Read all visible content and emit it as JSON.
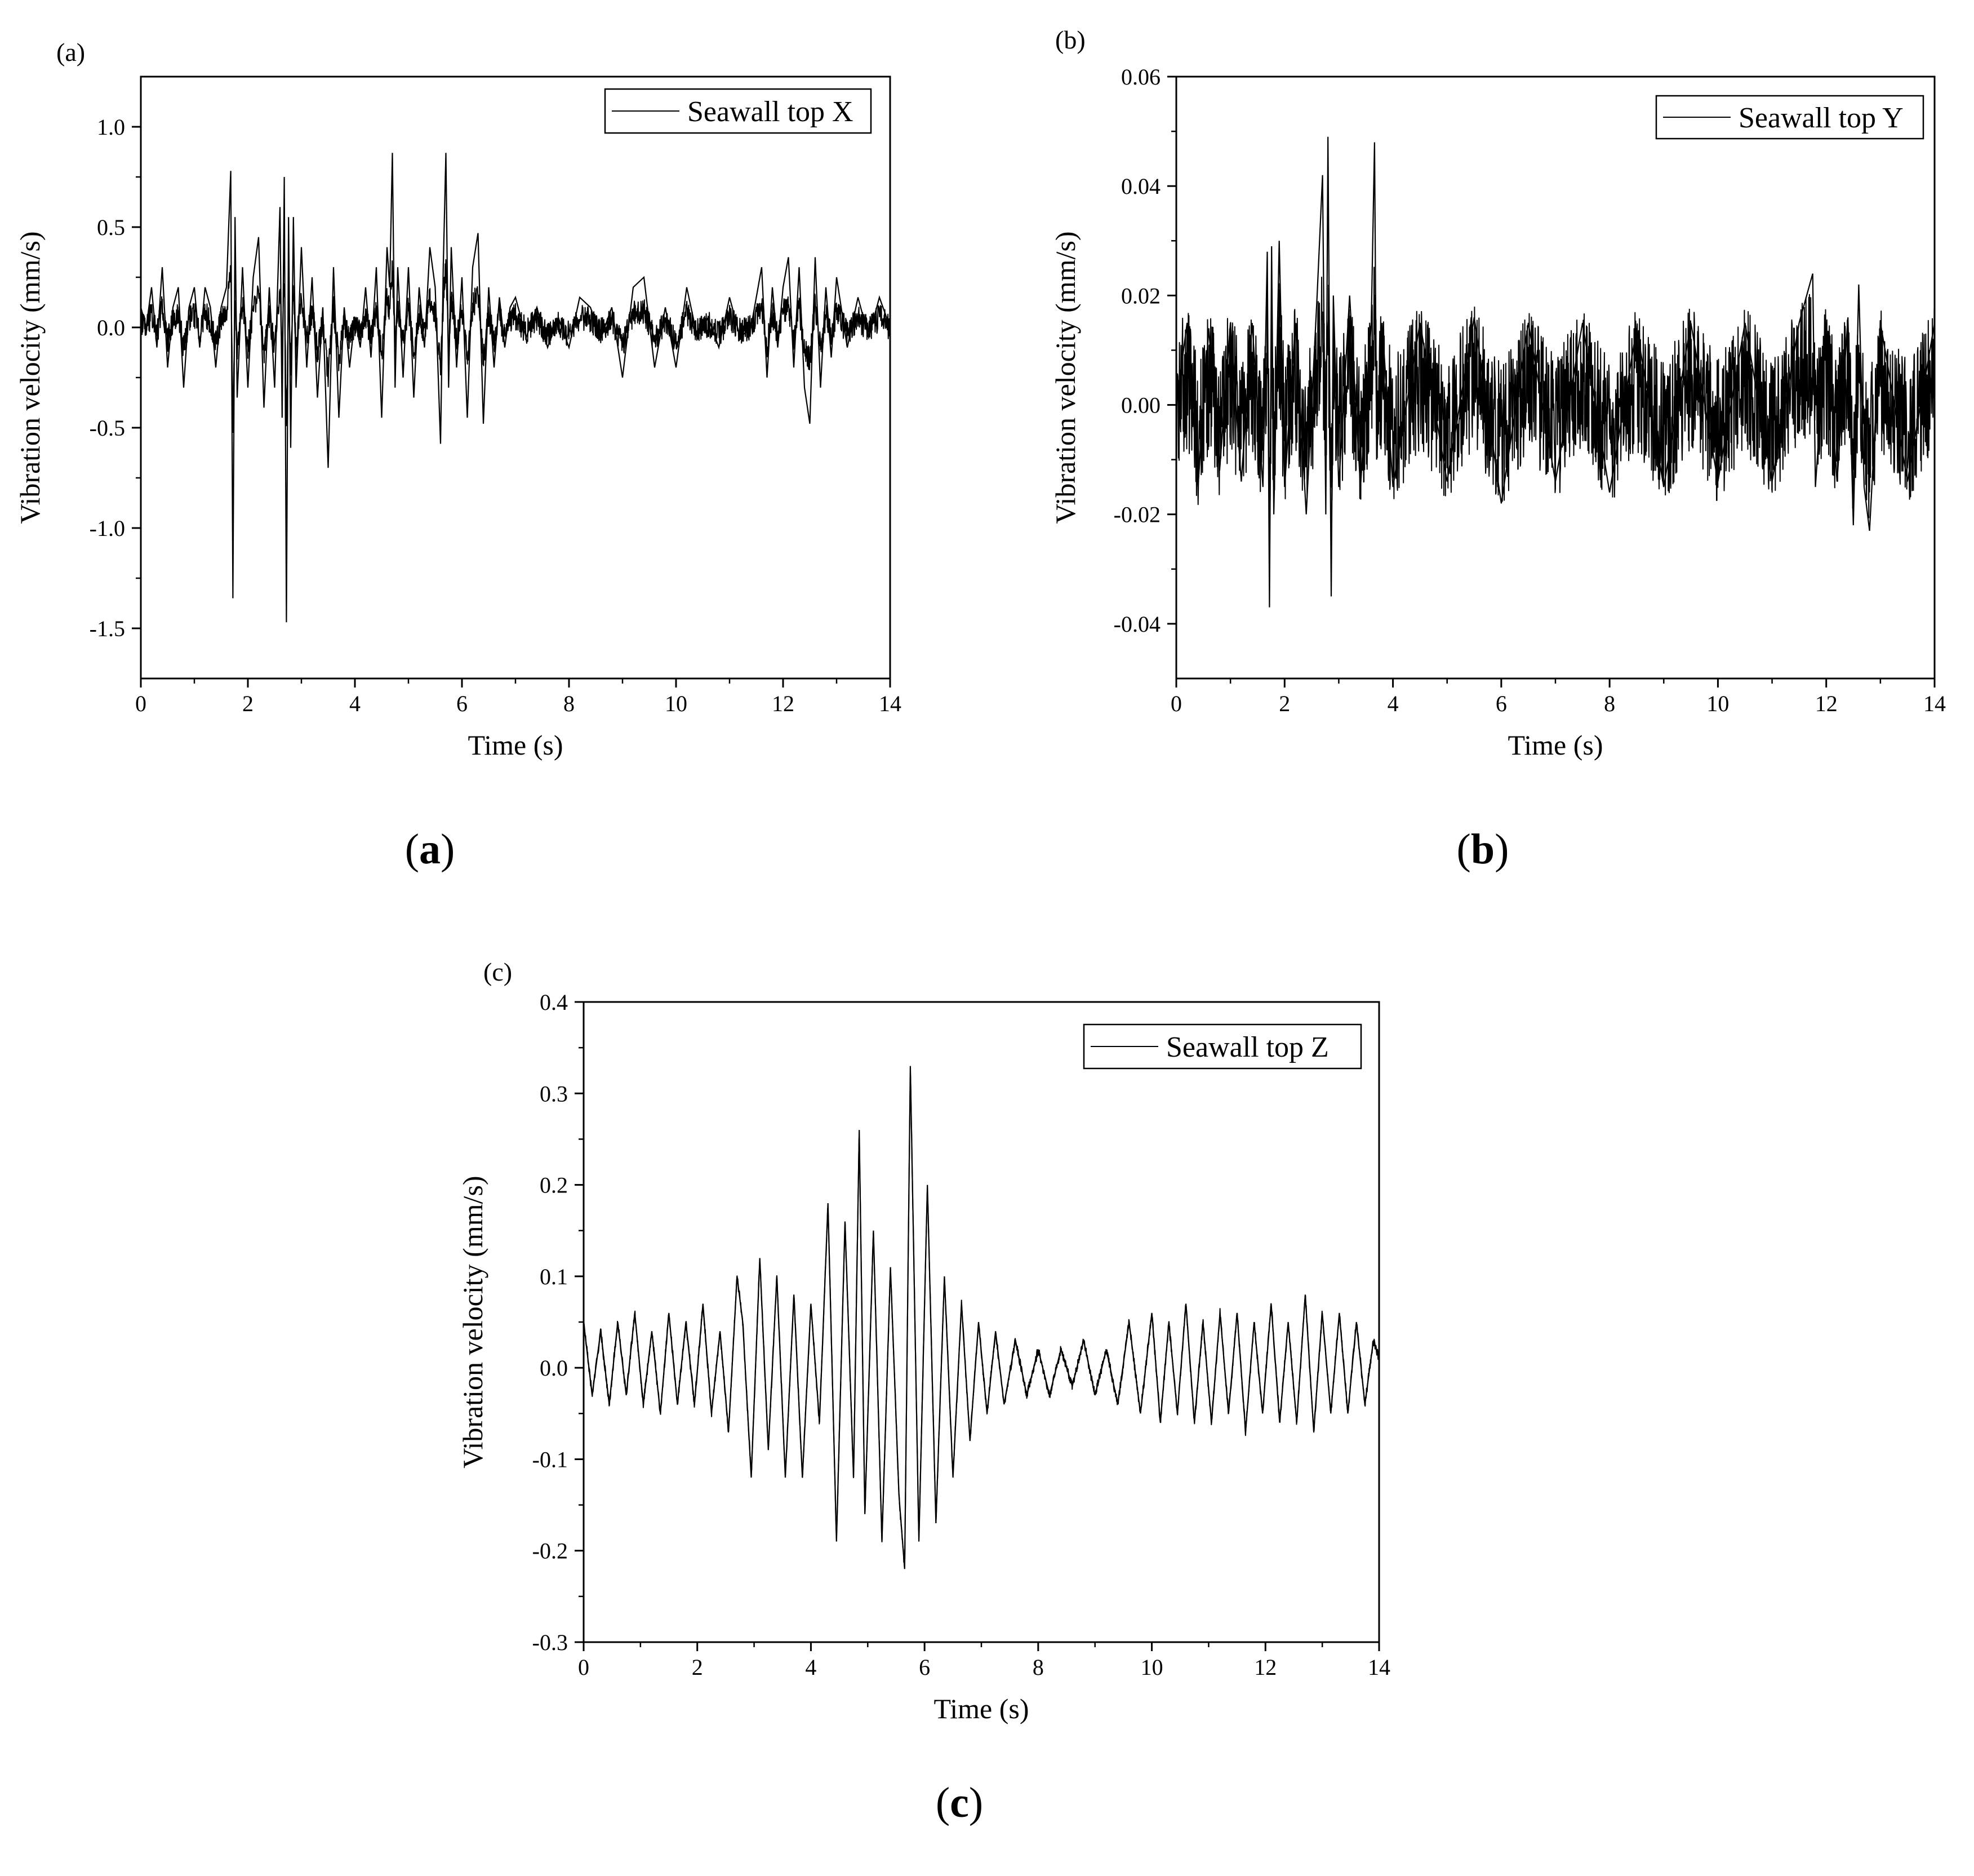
{
  "figure": {
    "captions": [
      {
        "open": "(",
        "letter": "a",
        "close": ")"
      },
      {
        "open": "(",
        "letter": "b",
        "close": ")"
      },
      {
        "open": "(",
        "letter": "c",
        "close": ")"
      }
    ]
  },
  "colors": {
    "trace": "#000000",
    "axes": "#000000",
    "background": "#ffffff"
  },
  "chart_data": [
    {
      "type": "line",
      "panel_tag": "(a)",
      "title": "",
      "xlabel": "Time (s)",
      "ylabel": "Vibration velocity (mm/s)",
      "xlim": [
        0,
        14
      ],
      "ylim": [
        -1.75,
        1.25
      ],
      "xticks": [
        0,
        2,
        4,
        6,
        8,
        10,
        12,
        14
      ],
      "xtick_labels": [
        "0",
        "2",
        "4",
        "6",
        "8",
        "10",
        "12",
        "14"
      ],
      "yticks": [
        -1.5,
        -1.0,
        -0.5,
        0.0,
        0.5,
        1.0
      ],
      "ytick_labels": [
        "-1.5",
        "-1.0",
        "-0.5",
        "0.0",
        "0.5",
        "1.0"
      ],
      "grid": false,
      "legend_position": "top-right",
      "series": [
        {
          "name": "Seawall top X",
          "baseline_noise": 0.06,
          "x": [
            0,
            0.1,
            0.2,
            0.3,
            0.4,
            0.5,
            0.6,
            0.7,
            0.8,
            0.9,
            1.0,
            1.1,
            1.2,
            1.3,
            1.4,
            1.5,
            1.6,
            1.68,
            1.72,
            1.76,
            1.8,
            1.9,
            2.0,
            2.1,
            2.2,
            2.3,
            2.4,
            2.5,
            2.6,
            2.64,
            2.68,
            2.72,
            2.76,
            2.8,
            2.85,
            2.9,
            3.0,
            3.1,
            3.2,
            3.3,
            3.4,
            3.5,
            3.6,
            3.7,
            3.8,
            3.9,
            4.0,
            4.1,
            4.2,
            4.3,
            4.4,
            4.5,
            4.6,
            4.65,
            4.7,
            4.75,
            4.8,
            4.9,
            5.0,
            5.1,
            5.2,
            5.3,
            5.4,
            5.5,
            5.6,
            5.65,
            5.7,
            5.75,
            5.8,
            5.9,
            6.0,
            6.1,
            6.2,
            6.3,
            6.4,
            6.5,
            6.6,
            6.7,
            6.8,
            6.9,
            7.0,
            7.2,
            7.4,
            7.6,
            7.8,
            8.0,
            8.2,
            8.4,
            8.6,
            8.8,
            9.0,
            9.2,
            9.4,
            9.6,
            9.8,
            10.0,
            10.2,
            10.4,
            10.6,
            10.8,
            11.0,
            11.2,
            11.4,
            11.6,
            11.7,
            11.8,
            11.9,
            12.0,
            12.1,
            12.2,
            12.3,
            12.4,
            12.5,
            12.6,
            12.7,
            12.8,
            12.9,
            13.0,
            13.2,
            13.4,
            13.6,
            13.8,
            14.0
          ],
          "values": [
            0.1,
            0.0,
            0.2,
            -0.1,
            0.3,
            -0.2,
            0.1,
            0.2,
            -0.3,
            0.1,
            0.2,
            -0.1,
            0.2,
            0.1,
            -0.2,
            0.1,
            0.2,
            0.78,
            -1.35,
            0.55,
            -0.35,
            0.3,
            -0.3,
            0.25,
            0.45,
            -0.4,
            0.2,
            -0.3,
            0.6,
            -0.45,
            0.75,
            -1.47,
            0.55,
            -0.6,
            0.55,
            -0.3,
            0.4,
            -0.2,
            0.25,
            -0.35,
            0.1,
            -0.7,
            0.3,
            -0.45,
            0.1,
            -0.2,
            0.05,
            -0.1,
            0.2,
            -0.15,
            0.3,
            -0.45,
            0.4,
            0.2,
            0.87,
            -0.3,
            0.3,
            -0.25,
            0.3,
            -0.35,
            0.2,
            -0.1,
            0.4,
            0.2,
            -0.58,
            0.3,
            0.87,
            -0.3,
            0.4,
            -0.2,
            0.25,
            -0.45,
            0.3,
            0.47,
            -0.48,
            0.2,
            -0.2,
            0.15,
            -0.1,
            0.1,
            0.15,
            -0.05,
            0.1,
            -0.1,
            0.05,
            -0.1,
            0.15,
            0.1,
            -0.05,
            0.1,
            -0.25,
            0.2,
            0.25,
            -0.2,
            0.1,
            -0.2,
            0.2,
            -0.05,
            0.05,
            -0.1,
            0.15,
            -0.05,
            0.0,
            0.3,
            -0.25,
            0.2,
            -0.1,
            0.2,
            0.35,
            -0.2,
            0.3,
            -0.3,
            -0.48,
            0.35,
            -0.3,
            0.2,
            -0.15,
            0.25,
            -0.1,
            0.15,
            -0.05,
            0.15,
            0.0
          ]
        }
      ]
    },
    {
      "type": "line",
      "panel_tag": "(b)",
      "title": "",
      "xlabel": "Time (s)",
      "ylabel": "Vibration velocity (mm/s)",
      "xlim": [
        0,
        14
      ],
      "ylim": [
        -0.05,
        0.06
      ],
      "xticks": [
        0,
        2,
        4,
        6,
        8,
        10,
        12,
        14
      ],
      "xtick_labels": [
        "0",
        "2",
        "4",
        "6",
        "8",
        "10",
        "12",
        "14"
      ],
      "yticks": [
        -0.04,
        -0.02,
        0.0,
        0.02,
        0.04,
        0.06
      ],
      "ytick_labels": [
        "-0.04",
        "-0.02",
        "0.00",
        "0.02",
        "0.04",
        "0.06"
      ],
      "grid": false,
      "legend_position": "top-right",
      "series": [
        {
          "name": "Seawall top Y",
          "baseline_noise": 0.012,
          "x": [
            0,
            0.2,
            0.4,
            0.6,
            0.8,
            1.0,
            1.2,
            1.4,
            1.6,
            1.68,
            1.72,
            1.76,
            1.8,
            1.9,
            2.0,
            2.2,
            2.4,
            2.6,
            2.7,
            2.76,
            2.8,
            2.86,
            2.9,
            3.0,
            3.2,
            3.4,
            3.6,
            3.66,
            3.7,
            3.8,
            4.0,
            4.5,
            5.0,
            5.5,
            6.0,
            6.5,
            7.0,
            7.5,
            8.0,
            8.5,
            9.0,
            9.5,
            10.0,
            10.5,
            11.0,
            11.5,
            11.75,
            11.8,
            12.0,
            12.2,
            12.4,
            12.5,
            12.6,
            12.7,
            12.8,
            13.0,
            13.5,
            14.0
          ],
          "values": [
            0.0,
            0.015,
            -0.015,
            0.014,
            -0.012,
            0.015,
            -0.014,
            0.015,
            -0.015,
            0.028,
            -0.037,
            0.029,
            -0.02,
            0.03,
            -0.015,
            0.015,
            -0.02,
            0.02,
            0.042,
            -0.02,
            0.049,
            -0.035,
            0.02,
            -0.015,
            0.02,
            -0.015,
            0.015,
            0.048,
            -0.01,
            0.015,
            -0.015,
            0.015,
            -0.014,
            0.016,
            -0.018,
            0.015,
            -0.014,
            0.015,
            -0.016,
            0.014,
            -0.015,
            0.015,
            -0.014,
            0.015,
            -0.014,
            0.015,
            0.024,
            -0.015,
            0.015,
            -0.014,
            0.016,
            -0.022,
            0.022,
            -0.015,
            -0.023,
            0.015,
            -0.014,
            0.015
          ]
        }
      ]
    },
    {
      "type": "line",
      "panel_tag": "(c)",
      "title": "",
      "xlabel": "Time (s)",
      "ylabel": "Vibration velocity (mm/s)",
      "xlim": [
        0,
        14
      ],
      "ylim": [
        -0.3,
        0.4
      ],
      "xticks": [
        0,
        2,
        4,
        6,
        8,
        10,
        12,
        14
      ],
      "xtick_labels": [
        "0",
        "2",
        "4",
        "6",
        "8",
        "10",
        "12",
        "14"
      ],
      "yticks": [
        -0.3,
        -0.2,
        -0.1,
        0.0,
        0.1,
        0.2,
        0.3,
        0.4
      ],
      "ytick_labels": [
        "-0.3",
        "-0.2",
        "-0.1",
        "0.0",
        "0.1",
        "0.2",
        "0.3",
        "0.4"
      ],
      "grid": false,
      "legend_position": "top-right",
      "series": [
        {
          "name": "Seawall top Z",
          "x": [
            0,
            0.15,
            0.3,
            0.45,
            0.6,
            0.75,
            0.9,
            1.05,
            1.2,
            1.35,
            1.5,
            1.65,
            1.8,
            1.95,
            2.1,
            2.25,
            2.4,
            2.55,
            2.7,
            2.8,
            2.95,
            3.1,
            3.25,
            3.4,
            3.55,
            3.7,
            3.85,
            4.0,
            4.15,
            4.3,
            4.45,
            4.6,
            4.75,
            4.85,
            4.95,
            5.1,
            5.25,
            5.4,
            5.55,
            5.65,
            5.75,
            5.9,
            6.05,
            6.2,
            6.35,
            6.5,
            6.65,
            6.8,
            6.95,
            7.1,
            7.25,
            7.4,
            7.6,
            7.8,
            8.0,
            8.2,
            8.4,
            8.6,
            8.8,
            9.0,
            9.2,
            9.4,
            9.6,
            9.8,
            10.0,
            10.15,
            10.3,
            10.45,
            10.6,
            10.75,
            10.9,
            11.05,
            11.2,
            11.35,
            11.5,
            11.65,
            11.8,
            11.95,
            12.1,
            12.25,
            12.4,
            12.55,
            12.7,
            12.85,
            13.0,
            13.15,
            13.3,
            13.45,
            13.6,
            13.75,
            13.9,
            14.0
          ],
          "values": [
            0.05,
            -0.03,
            0.04,
            -0.04,
            0.05,
            -0.03,
            0.06,
            -0.04,
            0.04,
            -0.05,
            0.06,
            -0.04,
            0.05,
            -0.04,
            0.07,
            -0.05,
            0.04,
            -0.07,
            0.1,
            0.05,
            -0.12,
            0.12,
            -0.09,
            0.1,
            -0.12,
            0.08,
            -0.12,
            0.07,
            -0.06,
            0.18,
            -0.19,
            0.16,
            -0.12,
            0.26,
            -0.16,
            0.15,
            -0.19,
            0.11,
            -0.14,
            -0.22,
            0.33,
            -0.19,
            0.2,
            -0.17,
            0.1,
            -0.12,
            0.07,
            -0.08,
            0.05,
            -0.05,
            0.04,
            -0.04,
            0.03,
            -0.03,
            0.02,
            -0.03,
            0.02,
            -0.02,
            0.03,
            -0.03,
            0.02,
            -0.04,
            0.05,
            -0.05,
            0.06,
            -0.06,
            0.05,
            -0.05,
            0.07,
            -0.06,
            0.05,
            -0.06,
            0.06,
            -0.05,
            0.06,
            -0.07,
            0.05,
            -0.05,
            0.07,
            -0.06,
            0.05,
            -0.06,
            0.08,
            -0.07,
            0.06,
            -0.05,
            0.06,
            -0.05,
            0.05,
            -0.04,
            0.03,
            0.01
          ]
        }
      ]
    }
  ]
}
